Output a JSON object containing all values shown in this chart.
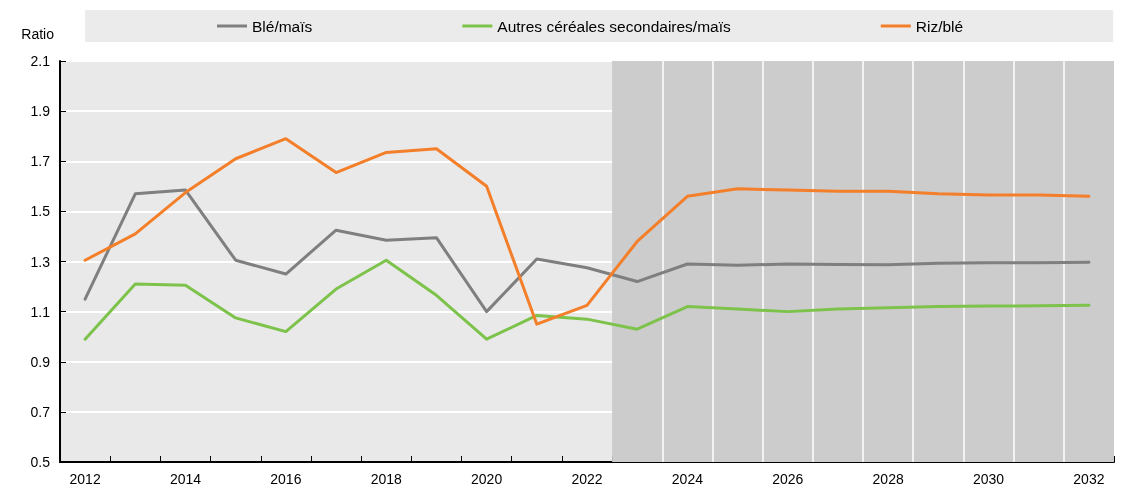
{
  "chart_data": {
    "type": "line",
    "ylabel": "Ratio",
    "x": [
      2012,
      2013,
      2014,
      2015,
      2016,
      2017,
      2018,
      2019,
      2020,
      2021,
      2022,
      2023,
      2024,
      2025,
      2026,
      2027,
      2028,
      2029,
      2030,
      2031,
      2032
    ],
    "xlim": [
      2011.5,
      2032.5
    ],
    "xticks": [
      {
        "value": 2011.5,
        "label": null
      },
      2012,
      {
        "value": 2012.5,
        "label": null
      },
      {
        "value": 2013.5,
        "label": null
      },
      2014,
      {
        "value": 2014.5,
        "label": null
      },
      {
        "value": 2015.5,
        "label": null
      },
      2016,
      {
        "value": 2016.5,
        "label": null
      },
      {
        "value": 2017.5,
        "label": null
      },
      2018,
      {
        "value": 2018.5,
        "label": null
      },
      {
        "value": 2019.5,
        "label": null
      },
      2020,
      {
        "value": 2020.5,
        "label": null
      },
      {
        "value": 2021.5,
        "label": null
      },
      2022,
      {
        "value": 2022.5,
        "label": null
      },
      {
        "value": 2023.5,
        "label": null
      },
      2024,
      {
        "value": 2024.5,
        "label": null
      },
      {
        "value": 2025.5,
        "label": null
      },
      2026,
      {
        "value": 2026.5,
        "label": null
      },
      {
        "value": 2027.5,
        "label": null
      },
      2028,
      {
        "value": 2028.5,
        "label": null
      },
      {
        "value": 2029.5,
        "label": null
      },
      2030,
      {
        "value": 2030.5,
        "label": null
      },
      {
        "value": 2031.5,
        "label": null
      },
      2032,
      {
        "value": 2032.5,
        "label": null
      }
    ],
    "ylim": [
      0.5,
      2.1
    ],
    "yticks": [
      0.5,
      0.7,
      0.9,
      1.1,
      1.3,
      1.5,
      1.7,
      1.9,
      2.1
    ],
    "grid": true,
    "legend": "top",
    "marker": "none",
    "line_style": "solid",
    "bands": [
      {
        "axis": "x",
        "from": 2022.5,
        "to": 2032.5,
        "color": "#cccccc"
      }
    ],
    "series": [
      {
        "name": "Blé/maïs",
        "color": "#7f7f7f",
        "values": [
          1.15,
          1.57,
          1.585,
          1.305,
          1.25,
          1.425,
          1.385,
          1.395,
          1.1,
          1.31,
          1.275,
          1.22,
          1.29,
          1.285,
          1.29,
          1.288,
          1.287,
          1.293,
          1.295,
          1.295,
          1.297
        ]
      },
      {
        "name": "Autres céréales secondaires/maïs",
        "color": "#7dc34b",
        "values": [
          0.99,
          1.21,
          1.205,
          1.075,
          1.02,
          1.19,
          1.305,
          1.165,
          0.99,
          1.085,
          1.07,
          1.03,
          1.12,
          1.11,
          1.1,
          1.11,
          1.115,
          1.12,
          1.122,
          1.123,
          1.125
        ]
      },
      {
        "name": "Riz/blé",
        "color": "#f47f2a",
        "values": [
          1.305,
          1.41,
          1.575,
          1.71,
          1.79,
          1.655,
          1.735,
          1.75,
          1.6,
          1.05,
          1.125,
          1.38,
          1.56,
          1.59,
          1.585,
          1.58,
          1.58,
          1.57,
          1.565,
          1.565,
          1.56
        ]
      }
    ]
  }
}
